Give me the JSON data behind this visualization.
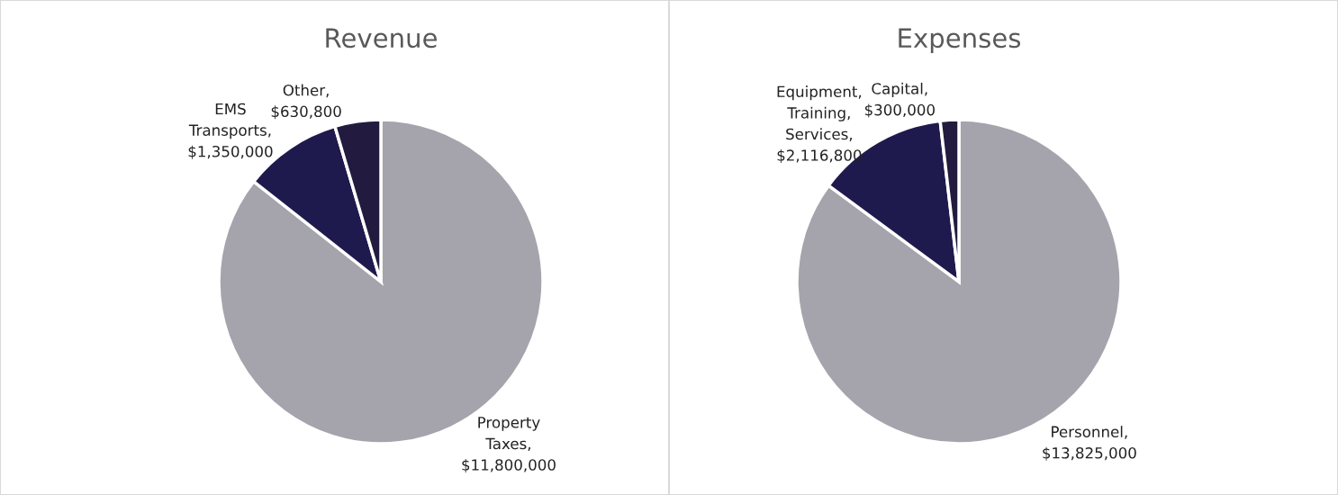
{
  "chart_data": [
    {
      "type": "pie",
      "title": "Revenue",
      "categories": [
        "Property Taxes, $11,800,000",
        "EMS Transports, $1,350,000",
        "Other, $630,800"
      ],
      "values": [
        11800000,
        1350000,
        630800
      ],
      "colors": [
        "#a5a4ad",
        "#1f1a4d",
        "#221b3f"
      ],
      "legend": false
    },
    {
      "type": "pie",
      "title": "Expenses",
      "categories": [
        "Personnel, $13,825,000",
        "Equipment, Training, Services, $2,116,800",
        "Capital, $300,000"
      ],
      "values": [
        13825000,
        2116800,
        300000
      ],
      "colors": [
        "#a5a4ad",
        "#1f1a4d",
        "#221b3f"
      ],
      "legend": false
    }
  ]
}
